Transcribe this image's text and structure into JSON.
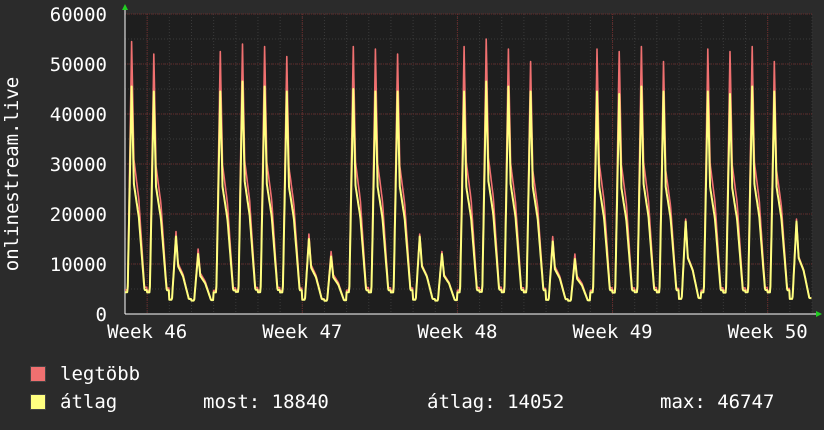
{
  "chart_data": {
    "type": "line",
    "title": "",
    "ylabel": "onlinestream.live",
    "xlabel": "",
    "ylim": [
      0,
      60000
    ],
    "yticks": [
      0,
      10000,
      20000,
      30000,
      40000,
      50000,
      60000
    ],
    "xticks": [
      "Week 46",
      "Week 47",
      "Week 48",
      "Week 49",
      "Week 50"
    ],
    "grid": true,
    "legend_position": "bottom-left",
    "days": 31,
    "series": [
      {
        "name": "legtöbb",
        "color": "#f07070",
        "daily_peaks": [
          54500,
          52000,
          16500,
          13000,
          52500,
          54000,
          53500,
          51500,
          16000,
          12500,
          53500,
          53000,
          52000,
          16000,
          12500,
          53500,
          55000,
          53000,
          50500,
          15500,
          12000,
          53000,
          52500,
          53500,
          50500,
          19000,
          53000,
          52500,
          53500,
          50500,
          19000
        ]
      },
      {
        "name": "átlag",
        "color": "#ffff80",
        "daily_peaks": [
          45500,
          44500,
          15500,
          12000,
          44500,
          46500,
          45500,
          44500,
          15000,
          11500,
          45000,
          44500,
          44500,
          15500,
          12000,
          44500,
          46500,
          45500,
          44500,
          14500,
          11000,
          44500,
          44000,
          45500,
          44500,
          18500,
          44500,
          44000,
          45500,
          44500,
          18500
        ]
      }
    ]
  },
  "legend": {
    "max_label": "legtöbb",
    "avg_label": "átlag",
    "max_color": "#f07070",
    "avg_color": "#ffff80"
  },
  "stats": {
    "now": "most: 18840",
    "average": "átlag: 14052",
    "max": "max: 46747"
  }
}
